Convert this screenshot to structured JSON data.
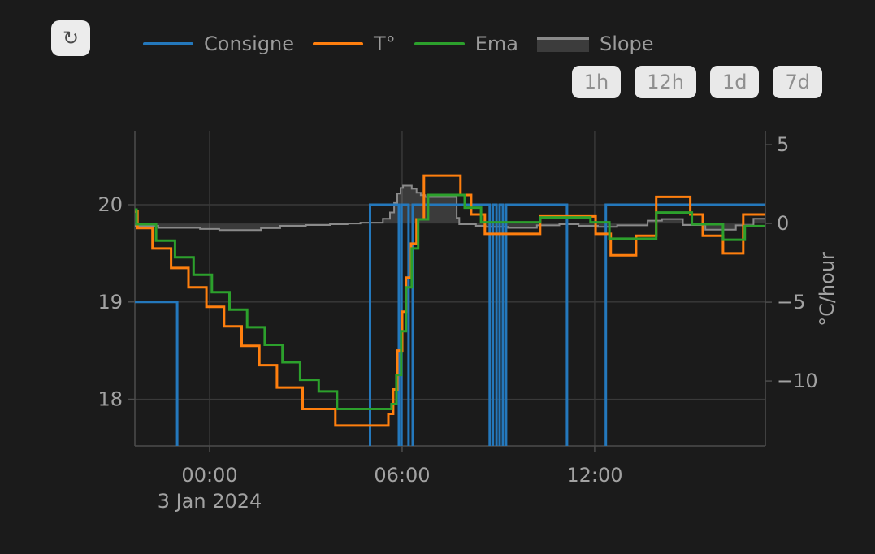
{
  "toolbar": {
    "refresh_icon_glyph": "↻"
  },
  "legend": {
    "items": [
      {
        "label": "Consigne",
        "color": "#2478bc",
        "swatch": "line"
      },
      {
        "label": "T°",
        "color": "#ff7f0e",
        "swatch": "line"
      },
      {
        "label": "Ema",
        "color": "#2ca02c",
        "swatch": "line"
      },
      {
        "label": "Slope",
        "color": "#8a8a8a",
        "swatch": "area"
      }
    ]
  },
  "range_buttons": [
    {
      "label": "1h"
    },
    {
      "label": "12h"
    },
    {
      "label": "1d"
    },
    {
      "label": "7d"
    }
  ],
  "chart_data": {
    "type": "line",
    "title": "",
    "grid": true,
    "legend_position": "top",
    "x_axis": {
      "unit": "hours relative to 3 Jan 2024 00:00",
      "range": [
        -2.33,
        17.32
      ],
      "ticks": [
        {
          "h": 0,
          "label": "00:00"
        },
        {
          "h": 6,
          "label": "06:00"
        },
        {
          "h": 12,
          "label": "12:00"
        }
      ],
      "date_label": "3 Jan 2024"
    },
    "y_left": {
      "label": "",
      "range": [
        17.52,
        20.76
      ],
      "ticks": [
        {
          "v": 20,
          "label": "20"
        },
        {
          "v": 19,
          "label": "19"
        },
        {
          "v": 18,
          "label": "18"
        }
      ]
    },
    "y_right": {
      "label": "°C/hour",
      "range": [
        -14.12,
        5.88
      ],
      "ticks": [
        {
          "v": 5,
          "label": "5"
        },
        {
          "v": 0,
          "label": "0"
        },
        {
          "v": -5,
          "label": "−5"
        },
        {
          "v": -10,
          "label": "−10"
        }
      ]
    },
    "series": [
      {
        "name": "Consigne",
        "color": "#2478bc",
        "axis": "left",
        "shape": "step",
        "width": 3,
        "points": [
          [
            -2.33,
            19
          ],
          [
            -1.01,
            16.5
          ],
          [
            5.0,
            20
          ],
          [
            5.9,
            16.5
          ],
          [
            5.98,
            20
          ],
          [
            6.2,
            16.5
          ],
          [
            6.33,
            20
          ],
          [
            8.73,
            16.5
          ],
          [
            8.83,
            20
          ],
          [
            8.94,
            16.5
          ],
          [
            9.04,
            20
          ],
          [
            9.14,
            16.5
          ],
          [
            9.24,
            20
          ],
          [
            11.14,
            16.5
          ],
          [
            12.35,
            20
          ]
        ]
      },
      {
        "name": "T°",
        "color": "#ff7f0e",
        "axis": "left",
        "shape": "step",
        "width": 3,
        "points": [
          [
            -2.33,
            19.93
          ],
          [
            -2.25,
            19.76
          ],
          [
            -1.78,
            19.55
          ],
          [
            -1.2,
            19.35
          ],
          [
            -0.66,
            19.15
          ],
          [
            -0.1,
            18.95
          ],
          [
            0.45,
            18.75
          ],
          [
            1.0,
            18.55
          ],
          [
            1.55,
            18.35
          ],
          [
            2.1,
            18.12
          ],
          [
            2.9,
            17.9
          ],
          [
            3.92,
            17.73
          ],
          [
            5.57,
            17.85
          ],
          [
            5.72,
            18.1
          ],
          [
            5.85,
            18.5
          ],
          [
            6.0,
            18.9
          ],
          [
            6.12,
            19.25
          ],
          [
            6.28,
            19.6
          ],
          [
            6.45,
            19.85
          ],
          [
            6.68,
            20.3
          ],
          [
            7.82,
            20.1
          ],
          [
            8.15,
            19.9
          ],
          [
            8.58,
            19.7
          ],
          [
            10.3,
            19.88
          ],
          [
            12.03,
            19.7
          ],
          [
            12.5,
            19.48
          ],
          [
            13.29,
            19.68
          ],
          [
            13.92,
            20.08
          ],
          [
            14.98,
            19.9
          ],
          [
            15.37,
            19.68
          ],
          [
            16.0,
            19.5
          ],
          [
            16.63,
            19.9
          ]
        ]
      },
      {
        "name": "Ema",
        "color": "#2ca02c",
        "axis": "left",
        "shape": "step",
        "width": 3,
        "points": [
          [
            -2.33,
            19.95
          ],
          [
            -2.28,
            19.8
          ],
          [
            -1.67,
            19.63
          ],
          [
            -1.08,
            19.46
          ],
          [
            -0.5,
            19.28
          ],
          [
            0.07,
            19.1
          ],
          [
            0.62,
            18.92
          ],
          [
            1.17,
            18.74
          ],
          [
            1.72,
            18.56
          ],
          [
            2.27,
            18.38
          ],
          [
            2.82,
            18.2
          ],
          [
            3.4,
            18.08
          ],
          [
            3.97,
            17.9
          ],
          [
            5.67,
            17.95
          ],
          [
            5.82,
            18.25
          ],
          [
            5.97,
            18.7
          ],
          [
            6.12,
            19.15
          ],
          [
            6.3,
            19.55
          ],
          [
            6.5,
            19.85
          ],
          [
            6.81,
            20.1
          ],
          [
            7.95,
            19.97
          ],
          [
            8.46,
            19.82
          ],
          [
            10.3,
            19.87
          ],
          [
            11.87,
            19.82
          ],
          [
            12.46,
            19.65
          ],
          [
            13.92,
            19.92
          ],
          [
            15.03,
            19.8
          ],
          [
            16.0,
            19.64
          ],
          [
            16.68,
            19.78
          ]
        ]
      },
      {
        "name": "Slope",
        "color": "#8a8a8a",
        "axis": "right",
        "shape": "step",
        "width": 2,
        "fill": "rgba(255,255,255,0.14)",
        "fill_to_zero": true,
        "points": [
          [
            -2.33,
            -0.15
          ],
          [
            -1.6,
            -0.28
          ],
          [
            -0.3,
            -0.35
          ],
          [
            0.3,
            -0.42
          ],
          [
            1.6,
            -0.3
          ],
          [
            2.2,
            -0.15
          ],
          [
            3.0,
            -0.1
          ],
          [
            3.75,
            -0.05
          ],
          [
            4.3,
            0
          ],
          [
            4.7,
            0.05
          ],
          [
            5.4,
            0.3
          ],
          [
            5.62,
            0.7
          ],
          [
            5.75,
            1.3
          ],
          [
            5.85,
            1.9
          ],
          [
            5.95,
            2.25
          ],
          [
            6.03,
            2.4
          ],
          [
            6.3,
            2.2
          ],
          [
            6.45,
            1.95
          ],
          [
            6.58,
            1.8
          ],
          [
            6.72,
            1.68
          ],
          [
            7.7,
            0.35
          ],
          [
            7.78,
            -0.05
          ],
          [
            8.3,
            -0.15
          ],
          [
            8.6,
            -0.22
          ],
          [
            9.3,
            -0.28
          ],
          [
            10.2,
            -0.12
          ],
          [
            10.9,
            -0.05
          ],
          [
            11.5,
            -0.15
          ],
          [
            12.1,
            -0.22
          ],
          [
            12.7,
            -0.12
          ],
          [
            13.65,
            0.18
          ],
          [
            14.1,
            0.28
          ],
          [
            14.75,
            -0.1
          ],
          [
            15.45,
            -0.4
          ],
          [
            16.4,
            -0.12
          ],
          [
            16.95,
            0.3
          ]
        ]
      }
    ]
  },
  "colors": {
    "background": "#1b1b1b",
    "grid": "#3a3a3a",
    "axis_line": "#4d4d4d",
    "tick_text": "#a2a2a2",
    "legend_text": "#9b9b9b",
    "button_bg": "#e9e9e9",
    "button_text": "#8f8f8f"
  }
}
